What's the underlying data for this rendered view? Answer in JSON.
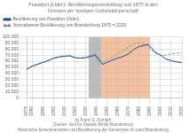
{
  "chart_data": {
    "type": "line",
    "title": "Frankfurt (Oder): Bevölkerungsentwicklung seit 1875 in den\nGrenzen der heutigen Gebietskörperschaft",
    "x": [
      1875,
      1880,
      1885,
      1890,
      1895,
      1900,
      1905,
      1910,
      1915,
      1920,
      1925,
      1930,
      1933,
      1939,
      1945,
      1946,
      1950,
      1955,
      1960,
      1964,
      1970,
      1975,
      1980,
      1985,
      1989,
      1990,
      1995,
      2000,
      2005,
      2010,
      2015,
      2020
    ],
    "series": [
      {
        "name": "Bevölkerung von Frankfurt\n(Oder)",
        "color": "#1a4a99",
        "line_style": "solid",
        "values": [
          47000,
          52000,
          55000,
          58000,
          61000,
          65000,
          67000,
          68000,
          69000,
          66000,
          65000,
          66000,
          67000,
          70000,
          57000,
          55000,
          58000,
          62000,
          65000,
          67000,
          72000,
          79000,
          84000,
          86000,
          87000,
          85000,
          75000,
          70000,
          64000,
          61000,
          59000,
          58000
        ]
      },
      {
        "name": "Normalisierte Bevölkerung von\nBrandenburg 1875 = 2020",
        "color": "#909090",
        "line_style": "dashed",
        "values": [
          47000,
          52000,
          55000,
          58000,
          61000,
          65000,
          67000,
          68000,
          69000,
          66000,
          65000,
          66000,
          68000,
          73000,
          60000,
          58000,
          62000,
          67000,
          72000,
          76000,
          83000,
          88000,
          90000,
          89000,
          86000,
          80000,
          74000,
          70000,
          70000,
          72000,
          73000,
          74000
        ]
      }
    ],
    "shaded_ranges": [
      {
        "start": 1933,
        "end": 1945,
        "color": "#b0b0b0"
      },
      {
        "start": 1945,
        "end": 1990,
        "color": "#e8a070"
      }
    ],
    "xlim": [
      1875,
      2020
    ],
    "xticks": [
      1875,
      1880,
      1890,
      1900,
      1910,
      1920,
      1930,
      1940,
      1950,
      1960,
      1970,
      1980,
      1990,
      2000,
      2010,
      2020
    ],
    "ylim": [
      0,
      100000
    ],
    "yticks": [
      0,
      {
        "value": 10000,
        "label": "10.000"
      },
      {
        "value": 20000,
        "label": "20.000"
      },
      {
        "value": 30000,
        "label": "30.000"
      },
      {
        "value": 40000,
        "label": "40.000"
      },
      {
        "value": 50000,
        "label": "50.000"
      },
      {
        "value": 60000,
        "label": "60.000"
      },
      {
        "value": 70000,
        "label": "70.000"
      },
      {
        "value": 80000,
        "label": "80.000"
      },
      {
        "value": 90000,
        "label": "90.000"
      },
      {
        "value": 100000,
        "label": "100.000"
      }
    ],
    "grid": true,
    "legend": "upper left",
    "annotations": [
      "by Franz G. Fröhlich",
      "Quellen: Amt für Statistik Berlin-Brandenburg",
      "Historische Einwohnerzahlen und Bevölkerung der Gemeinden im Land Brandenburg"
    ]
  }
}
